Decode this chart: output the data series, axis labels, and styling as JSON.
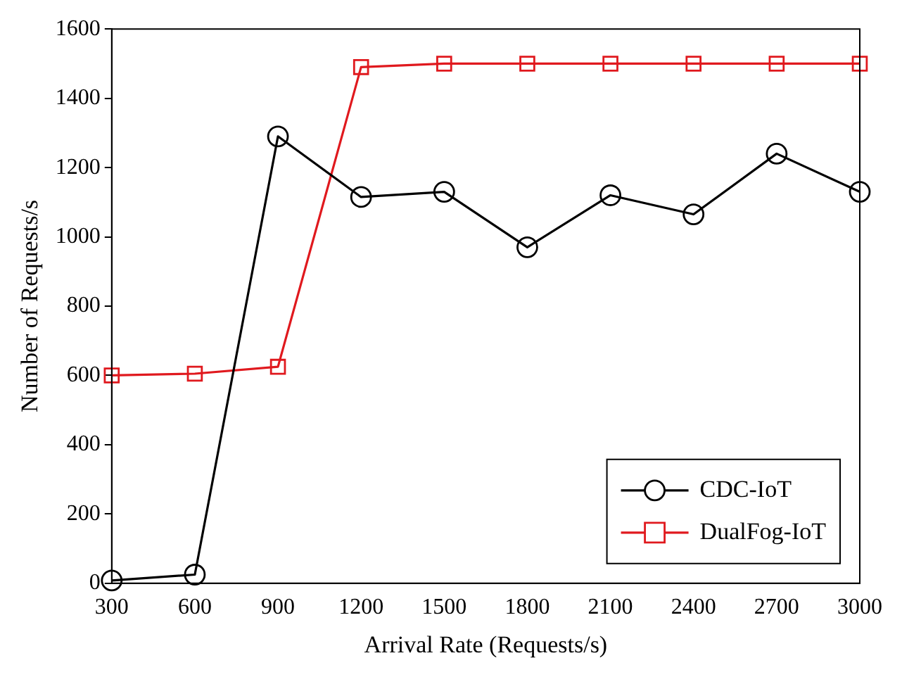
{
  "chart_data": {
    "type": "line",
    "xlabel": "Arrival Rate (Requests/s)",
    "ylabel": "Number of Requests/s",
    "categories": [
      "300",
      "600",
      "900",
      "1200",
      "1500",
      "1800",
      "2100",
      "2400",
      "2700",
      "3000"
    ],
    "ylim": [
      0,
      1600
    ],
    "yticks": [
      0,
      200,
      400,
      600,
      800,
      1000,
      1200,
      1400,
      1600
    ],
    "grid": false,
    "legend": "bottom right",
    "line_style": "solid",
    "series": [
      {
        "name": "CDC-IoT",
        "color": "#000000",
        "marker": "circle",
        "values": [
          8,
          25,
          1290,
          1115,
          1130,
          970,
          1120,
          1065,
          1240,
          1130
        ]
      },
      {
        "name": "DualFog-IoT",
        "color": "#e0191e",
        "marker": "square",
        "values": [
          600,
          605,
          625,
          1490,
          1500,
          1500,
          1500,
          1500,
          1500,
          1500
        ]
      }
    ]
  }
}
